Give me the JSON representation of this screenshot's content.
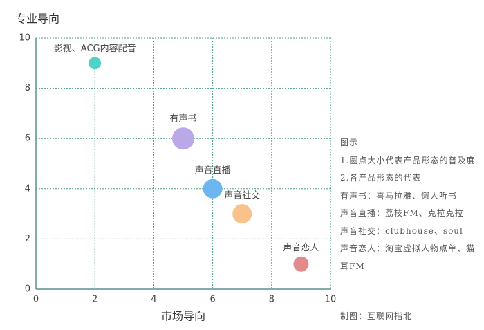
{
  "chart_data": {
    "type": "bubble",
    "ylabel": "专业导向",
    "xlabel": "市场导向",
    "labels": [
      "影视、ACG内容配音",
      "有声书",
      "声音直播",
      "声音社交",
      "声音恋人"
    ],
    "x": [
      2,
      5,
      6,
      7,
      9
    ],
    "y": [
      9,
      6,
      4,
      3,
      1
    ],
    "sizes": [
      9,
      16,
      14,
      14,
      11
    ],
    "colors": [
      "#4fd3c8",
      "#bba8e8",
      "#6cb6f2",
      "#f8c28a",
      "#e38b8b"
    ],
    "xlim": [
      0,
      10
    ],
    "ylim": [
      0,
      10
    ],
    "xticks": [
      0,
      2,
      4,
      6,
      8,
      10
    ],
    "yticks": [
      0,
      2,
      4,
      6,
      8,
      10
    ],
    "grid": true
  },
  "notes": {
    "lines": [
      "图示",
      "1.圆点大小代表产品形态的普及度",
      "2.各产品形态的代表",
      "有声书：喜马拉雅、懒人听书",
      "声音直播：荔枝FM、克拉克拉",
      "声音社交：clubhouse、soul",
      "声音恋人：淘宝虚拟人物点单、猫耳FM"
    ],
    "credit": "制图：互联网指北"
  }
}
